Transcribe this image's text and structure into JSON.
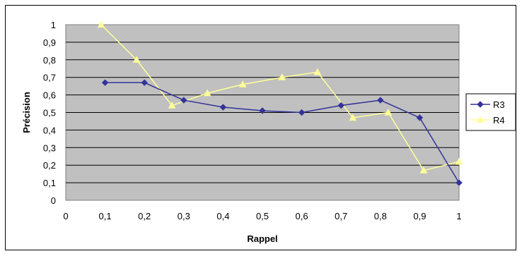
{
  "chart_data": {
    "type": "line",
    "title": "",
    "xlabel": "Rappel",
    "ylabel": "Précision",
    "xlim": [
      0,
      1
    ],
    "ylim": [
      0,
      1
    ],
    "x_ticks": [
      "0",
      "0,1",
      "0,2",
      "0,3",
      "0,4",
      "0,5",
      "0,6",
      "0,7",
      "0,8",
      "0,9",
      "1"
    ],
    "y_ticks": [
      "0",
      "0,1",
      "0,2",
      "0,3",
      "0,4",
      "0,5",
      "0,6",
      "0,7",
      "0,8",
      "0,9",
      "1"
    ],
    "grid": "horizontal",
    "legend_position": "right",
    "series": [
      {
        "name": "R3",
        "color": "#333399",
        "marker": "diamond",
        "x": [
          0.1,
          0.2,
          0.3,
          0.4,
          0.5,
          0.6,
          0.7,
          0.8,
          0.9,
          1.0
        ],
        "y": [
          0.67,
          0.67,
          0.57,
          0.53,
          0.51,
          0.5,
          0.54,
          0.57,
          0.47,
          0.1
        ]
      },
      {
        "name": "R4",
        "color": "#FFFF99",
        "marker": "triangle",
        "x": [
          0.09,
          0.18,
          0.27,
          0.36,
          0.45,
          0.55,
          0.64,
          0.73,
          0.82,
          0.91,
          1.0
        ],
        "y": [
          1.0,
          0.8,
          0.54,
          0.61,
          0.66,
          0.7,
          0.73,
          0.47,
          0.5,
          0.17,
          0.22
        ]
      }
    ]
  }
}
